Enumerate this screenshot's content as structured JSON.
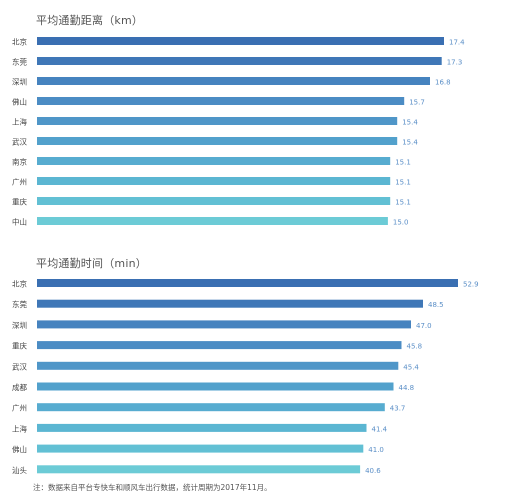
{
  "chart_data": [
    {
      "type": "bar",
      "orientation": "horizontal",
      "title": "平均通勤距离（km）",
      "categories": [
        "北京",
        "东莞",
        "深圳",
        "佛山",
        "上海",
        "武汉",
        "南京",
        "广州",
        "重庆",
        "中山"
      ],
      "values": [
        17.4,
        17.3,
        16.8,
        15.7,
        15.4,
        15.4,
        15.1,
        15.1,
        15.1,
        15.0
      ],
      "value_labels": [
        "17.4",
        "17.3",
        "16.8",
        "15.7",
        "15.4",
        "15.4",
        "15.1",
        "15.1",
        "15.1",
        "15.0"
      ],
      "axis_visible": false,
      "grid": false,
      "colors": [
        "#3a6fb2",
        "#3f77b7",
        "#4683bf",
        "#4b8cc4",
        "#4f96c8",
        "#52a1cc",
        "#57acd0",
        "#5bb6d2",
        "#62c0d4",
        "#6ccbd6"
      ]
    },
    {
      "type": "bar",
      "orientation": "horizontal",
      "title": "平均通勤时间（min）",
      "categories": [
        "北京",
        "东莞",
        "深圳",
        "重庆",
        "武汉",
        "成都",
        "广州",
        "上海",
        "佛山",
        "汕头"
      ],
      "values": [
        52.9,
        48.5,
        47.0,
        45.8,
        45.4,
        44.8,
        43.7,
        41.4,
        41.0,
        40.6
      ],
      "value_labels": [
        "52.9",
        "48.5",
        "47.0",
        "45.8",
        "45.4",
        "44.8",
        "43.7",
        "41.4",
        "41.0",
        "40.6"
      ],
      "axis_visible": false,
      "grid": false,
      "colors": [
        "#3a6fb2",
        "#3f77b7",
        "#4683bf",
        "#4b8cc4",
        "#4f96c8",
        "#52a1cc",
        "#57acd0",
        "#5bb6d2",
        "#62c0d4",
        "#6ccbd6"
      ]
    }
  ],
  "footnote": "注：数据来自平台专快车和顺风车出行数据，统计周期为2017年11月。"
}
